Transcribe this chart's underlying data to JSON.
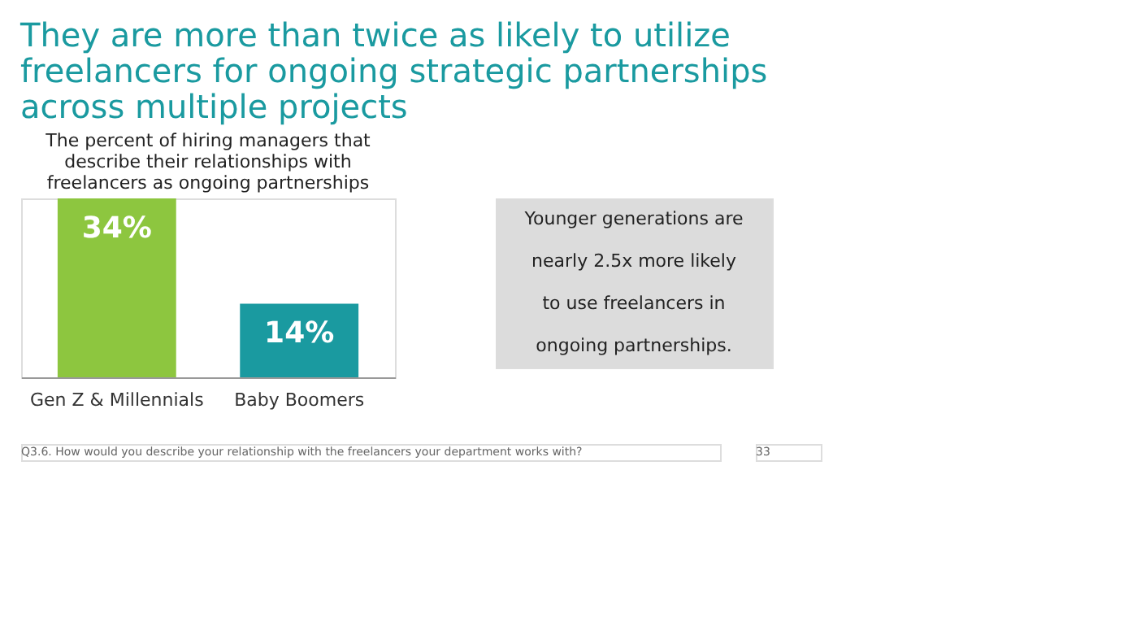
{
  "chart_data": {
    "type": "bar",
    "title": "They are more than twice as likely to utilize freelancers for ongoing strategic partnerships across multiple projects",
    "subtitle": "The percent of hiring managers that describe their relationships with freelancers as ongoing partnerships",
    "categories": [
      "Gen Z & Millennials",
      "Baby Boomers"
    ],
    "values": [
      34,
      14
    ],
    "colors": [
      "#8dc63f",
      "#1a9aa0"
    ],
    "data_labels": true,
    "value_labels": [
      "34%",
      "14%"
    ],
    "annotations": [
      "Younger generations are nearly 2.5x more likely to use freelancers in ongoing partnerships.",
      "Q3.6. How would you describe your relationship with the freelancers your department works with?",
      "33"
    ]
  }
}
